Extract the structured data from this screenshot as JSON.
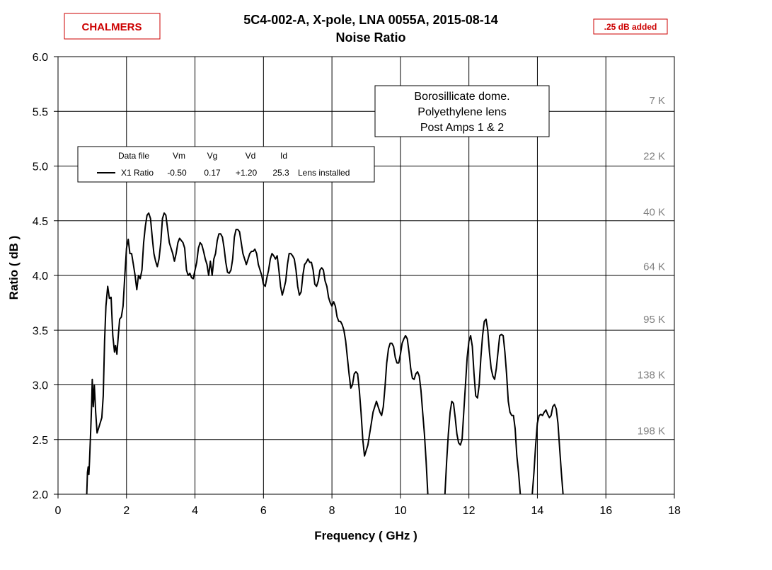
{
  "header": {
    "title_line1": "5C4-002-A,  X-pole,  LNA 0055A,  2015-08-14",
    "title_line2": "Noise Ratio",
    "logo": "CHALMERS",
    "badge": ".25 dB added",
    "brand_color": "#cc0000"
  },
  "note": {
    "lines": [
      "Borosillicate dome.",
      "Polyethylene lens",
      "Post Amps 1 & 2"
    ]
  },
  "legend": {
    "headers": [
      "Data file",
      "Vm",
      "Vg",
      "Vd",
      "Id"
    ],
    "row": {
      "file": "X1 Ratio",
      "vm": "-0.50",
      "vg": "0.17",
      "vd": "+1.20",
      "id": "25.3",
      "comment": "Lens installed"
    }
  },
  "chart_data": {
    "type": "line",
    "xlabel": "Frequency ( GHz )",
    "ylabel": "Ratio  ( dB )",
    "xlim": [
      0,
      18
    ],
    "ylim": [
      2.0,
      6.0
    ],
    "x_ticks": [
      "0",
      "2",
      "4",
      "6",
      "8",
      "10",
      "12",
      "14",
      "16",
      "18"
    ],
    "y_ticks": [
      "2.0",
      "2.5",
      "3.0",
      "3.5",
      "4.0",
      "4.5",
      "5.0",
      "5.5",
      "6.0"
    ],
    "grid": true,
    "legend_position": "top-left",
    "temperature_labels": [
      {
        "text": "7 K",
        "y": 5.6
      },
      {
        "text": "22 K",
        "y": 5.09
      },
      {
        "text": "40 K",
        "y": 4.58
      },
      {
        "text": "64 K",
        "y": 4.08
      },
      {
        "text": "95 K",
        "y": 3.6
      },
      {
        "text": "138 K",
        "y": 3.09
      },
      {
        "text": "198 K",
        "y": 2.58
      }
    ],
    "series": [
      {
        "name": "X1 Ratio",
        "color": "#000000",
        "segments": [
          [
            [
              0.84,
              2.0
            ],
            [
              0.86,
              2.2
            ],
            [
              0.88,
              2.25
            ],
            [
              0.9,
              2.18
            ],
            [
              0.92,
              2.3
            ],
            [
              0.95,
              2.55
            ],
            [
              0.98,
              2.8
            ],
            [
              1.0,
              3.05
            ],
            [
              1.03,
              2.8
            ],
            [
              1.06,
              3.0
            ],
            [
              1.1,
              2.75
            ],
            [
              1.14,
              2.56
            ],
            [
              1.2,
              2.62
            ],
            [
              1.28,
              2.7
            ],
            [
              1.32,
              2.9
            ],
            [
              1.36,
              3.4
            ],
            [
              1.4,
              3.72
            ],
            [
              1.45,
              3.9
            ],
            [
              1.5,
              3.79
            ],
            [
              1.55,
              3.8
            ],
            [
              1.6,
              3.45
            ],
            [
              1.65,
              3.3
            ],
            [
              1.68,
              3.36
            ],
            [
              1.72,
              3.28
            ],
            [
              1.76,
              3.45
            ],
            [
              1.8,
              3.6
            ],
            [
              1.85,
              3.62
            ],
            [
              1.9,
              3.72
            ],
            [
              1.95,
              4.0
            ],
            [
              2.0,
              4.25
            ],
            [
              2.05,
              4.33
            ],
            [
              2.1,
              4.2
            ],
            [
              2.15,
              4.2
            ],
            [
              2.2,
              4.1
            ],
            [
              2.25,
              4.0
            ],
            [
              2.3,
              3.87
            ],
            [
              2.35,
              4.0
            ],
            [
              2.4,
              3.97
            ],
            [
              2.45,
              4.05
            ],
            [
              2.5,
              4.3
            ],
            [
              2.55,
              4.45
            ],
            [
              2.6,
              4.55
            ],
            [
              2.65,
              4.57
            ],
            [
              2.7,
              4.52
            ],
            [
              2.75,
              4.35
            ],
            [
              2.8,
              4.2
            ],
            [
              2.85,
              4.13
            ],
            [
              2.9,
              4.08
            ],
            [
              2.95,
              4.15
            ],
            [
              3.0,
              4.3
            ],
            [
              3.05,
              4.52
            ],
            [
              3.1,
              4.57
            ],
            [
              3.15,
              4.55
            ],
            [
              3.2,
              4.43
            ],
            [
              3.25,
              4.3
            ],
            [
              3.3,
              4.25
            ],
            [
              3.35,
              4.2
            ],
            [
              3.4,
              4.13
            ],
            [
              3.45,
              4.2
            ],
            [
              3.5,
              4.3
            ],
            [
              3.55,
              4.34
            ],
            [
              3.6,
              4.32
            ],
            [
              3.65,
              4.3
            ],
            [
              3.7,
              4.25
            ],
            [
              3.75,
              4.05
            ],
            [
              3.8,
              4.0
            ],
            [
              3.85,
              4.02
            ],
            [
              3.9,
              3.98
            ],
            [
              3.95,
              3.97
            ],
            [
              4.0,
              4.05
            ],
            [
              4.05,
              4.12
            ],
            [
              4.1,
              4.25
            ],
            [
              4.15,
              4.3
            ],
            [
              4.2,
              4.28
            ],
            [
              4.25,
              4.22
            ],
            [
              4.3,
              4.15
            ],
            [
              4.35,
              4.1
            ],
            [
              4.4,
              4.0
            ],
            [
              4.45,
              4.13
            ],
            [
              4.5,
              4.0
            ],
            [
              4.55,
              4.15
            ],
            [
              4.6,
              4.2
            ],
            [
              4.65,
              4.32
            ],
            [
              4.7,
              4.38
            ],
            [
              4.75,
              4.38
            ],
            [
              4.8,
              4.35
            ],
            [
              4.85,
              4.25
            ],
            [
              4.9,
              4.12
            ],
            [
              4.95,
              4.03
            ],
            [
              5.0,
              4.02
            ],
            [
              5.05,
              4.05
            ],
            [
              5.1,
              4.15
            ],
            [
              5.15,
              4.35
            ],
            [
              5.2,
              4.42
            ],
            [
              5.25,
              4.42
            ],
            [
              5.3,
              4.4
            ],
            [
              5.35,
              4.3
            ],
            [
              5.4,
              4.2
            ],
            [
              5.45,
              4.15
            ],
            [
              5.5,
              4.1
            ],
            [
              5.55,
              4.15
            ],
            [
              5.6,
              4.2
            ],
            [
              5.65,
              4.22
            ],
            [
              5.7,
              4.22
            ],
            [
              5.75,
              4.24
            ],
            [
              5.8,
              4.2
            ],
            [
              5.85,
              4.1
            ],
            [
              5.9,
              4.05
            ],
            [
              5.95,
              4.0
            ],
            [
              6.0,
              3.92
            ],
            [
              6.05,
              3.9
            ],
            [
              6.1,
              3.98
            ],
            [
              6.15,
              4.05
            ],
            [
              6.2,
              4.15
            ],
            [
              6.25,
              4.2
            ],
            [
              6.3,
              4.18
            ],
            [
              6.35,
              4.15
            ],
            [
              6.4,
              4.18
            ],
            [
              6.45,
              4.05
            ],
            [
              6.5,
              3.9
            ],
            [
              6.55,
              3.82
            ],
            [
              6.6,
              3.88
            ],
            [
              6.65,
              3.95
            ],
            [
              6.7,
              4.1
            ],
            [
              6.75,
              4.2
            ],
            [
              6.8,
              4.2
            ],
            [
              6.85,
              4.18
            ],
            [
              6.9,
              4.15
            ],
            [
              6.95,
              4.05
            ],
            [
              7.0,
              3.9
            ],
            [
              7.05,
              3.82
            ],
            [
              7.1,
              3.85
            ],
            [
              7.15,
              4.0
            ],
            [
              7.2,
              4.1
            ],
            [
              7.25,
              4.12
            ],
            [
              7.3,
              4.15
            ],
            [
              7.35,
              4.12
            ],
            [
              7.4,
              4.12
            ],
            [
              7.45,
              4.05
            ],
            [
              7.5,
              3.92
            ],
            [
              7.55,
              3.9
            ],
            [
              7.6,
              3.95
            ],
            [
              7.65,
              4.05
            ],
            [
              7.7,
              4.07
            ],
            [
              7.75,
              4.05
            ],
            [
              7.8,
              3.95
            ],
            [
              7.85,
              3.9
            ],
            [
              7.9,
              3.8
            ],
            [
              7.95,
              3.75
            ],
            [
              8.0,
              3.72
            ],
            [
              8.05,
              3.76
            ],
            [
              8.1,
              3.72
            ],
            [
              8.15,
              3.62
            ],
            [
              8.2,
              3.58
            ],
            [
              8.25,
              3.58
            ],
            [
              8.3,
              3.55
            ],
            [
              8.35,
              3.5
            ],
            [
              8.4,
              3.4
            ],
            [
              8.45,
              3.25
            ],
            [
              8.5,
              3.1
            ],
            [
              8.55,
              2.97
            ],
            [
              8.6,
              3.0
            ],
            [
              8.65,
              3.1
            ],
            [
              8.7,
              3.12
            ],
            [
              8.75,
              3.1
            ],
            [
              8.8,
              2.95
            ],
            [
              8.85,
              2.75
            ],
            [
              8.9,
              2.5
            ],
            [
              8.95,
              2.35
            ],
            [
              9.0,
              2.4
            ],
            [
              9.05,
              2.45
            ],
            [
              9.1,
              2.55
            ],
            [
              9.15,
              2.65
            ],
            [
              9.2,
              2.75
            ],
            [
              9.25,
              2.8
            ],
            [
              9.3,
              2.85
            ],
            [
              9.35,
              2.8
            ],
            [
              9.4,
              2.75
            ],
            [
              9.45,
              2.72
            ],
            [
              9.5,
              2.8
            ],
            [
              9.55,
              2.98
            ],
            [
              9.6,
              3.2
            ],
            [
              9.65,
              3.33
            ],
            [
              9.7,
              3.38
            ],
            [
              9.75,
              3.38
            ],
            [
              9.8,
              3.35
            ],
            [
              9.85,
              3.25
            ],
            [
              9.9,
              3.2
            ],
            [
              9.95,
              3.2
            ],
            [
              10.0,
              3.28
            ],
            [
              10.05,
              3.38
            ],
            [
              10.1,
              3.42
            ],
            [
              10.15,
              3.45
            ],
            [
              10.2,
              3.42
            ],
            [
              10.25,
              3.3
            ],
            [
              10.3,
              3.15
            ],
            [
              10.35,
              3.06
            ],
            [
              10.4,
              3.05
            ],
            [
              10.45,
              3.1
            ],
            [
              10.5,
              3.12
            ],
            [
              10.55,
              3.08
            ],
            [
              10.6,
              2.95
            ],
            [
              10.65,
              2.75
            ],
            [
              10.7,
              2.55
            ],
            [
              10.75,
              2.3
            ],
            [
              10.8,
              2.0
            ]
          ],
          [
            [
              11.3,
              2.0
            ],
            [
              11.35,
              2.3
            ],
            [
              11.4,
              2.55
            ],
            [
              11.45,
              2.75
            ],
            [
              11.5,
              2.85
            ],
            [
              11.55,
              2.83
            ],
            [
              11.6,
              2.7
            ],
            [
              11.65,
              2.55
            ],
            [
              11.7,
              2.47
            ],
            [
              11.75,
              2.45
            ],
            [
              11.8,
              2.5
            ],
            [
              11.85,
              2.75
            ],
            [
              11.9,
              3.0
            ],
            [
              11.95,
              3.25
            ],
            [
              12.0,
              3.4
            ],
            [
              12.05,
              3.45
            ],
            [
              12.1,
              3.35
            ],
            [
              12.15,
              3.1
            ],
            [
              12.2,
              2.9
            ],
            [
              12.25,
              2.88
            ],
            [
              12.3,
              3.0
            ],
            [
              12.35,
              3.25
            ],
            [
              12.4,
              3.45
            ],
            [
              12.45,
              3.58
            ],
            [
              12.5,
              3.6
            ],
            [
              12.55,
              3.5
            ],
            [
              12.6,
              3.3
            ],
            [
              12.65,
              3.15
            ],
            [
              12.7,
              3.08
            ],
            [
              12.75,
              3.05
            ],
            [
              12.8,
              3.15
            ],
            [
              12.85,
              3.3
            ],
            [
              12.9,
              3.45
            ],
            [
              12.95,
              3.46
            ],
            [
              13.0,
              3.45
            ],
            [
              13.05,
              3.3
            ],
            [
              13.1,
              3.1
            ],
            [
              13.15,
              2.85
            ],
            [
              13.2,
              2.75
            ],
            [
              13.25,
              2.72
            ],
            [
              13.3,
              2.72
            ],
            [
              13.35,
              2.6
            ],
            [
              13.4,
              2.35
            ],
            [
              13.45,
              2.2
            ],
            [
              13.5,
              2.0
            ]
          ],
          [
            [
              13.85,
              2.0
            ],
            [
              13.9,
              2.2
            ],
            [
              13.95,
              2.45
            ],
            [
              14.0,
              2.65
            ],
            [
              14.05,
              2.72
            ],
            [
              14.1,
              2.73
            ],
            [
              14.15,
              2.72
            ],
            [
              14.2,
              2.75
            ],
            [
              14.25,
              2.77
            ],
            [
              14.3,
              2.73
            ],
            [
              14.35,
              2.7
            ],
            [
              14.4,
              2.72
            ],
            [
              14.45,
              2.8
            ],
            [
              14.5,
              2.82
            ],
            [
              14.55,
              2.78
            ],
            [
              14.6,
              2.65
            ],
            [
              14.65,
              2.42
            ],
            [
              14.7,
              2.2
            ],
            [
              14.75,
              2.0
            ]
          ]
        ]
      }
    ]
  }
}
